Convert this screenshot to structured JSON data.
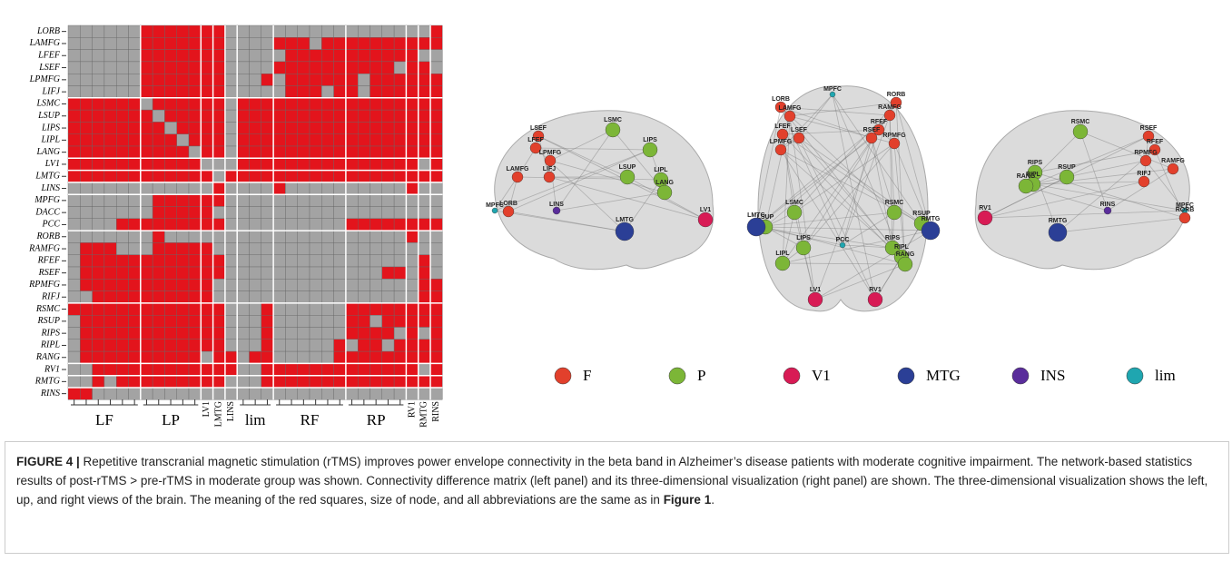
{
  "figure": {
    "matrix": {
      "row_labels": [
        "LORB",
        "LAMFG",
        "LFEF",
        "LSEF",
        "LPMFG",
        "LIFJ",
        "LSMC",
        "LSUP",
        "LIPS",
        "LIPL",
        "LANG",
        "LV1",
        "LMTG",
        "LINS",
        "MPFG",
        "DACC",
        "PCC",
        "RORB",
        "RAMFG",
        "RFEF",
        "RSEF",
        "RPMFG",
        "RIFJ",
        "RSMC",
        "RSUP",
        "RIPS",
        "RIPL",
        "RANG",
        "RV1",
        "RMTG",
        "RINS"
      ],
      "col_labels": [
        "LF",
        "LP",
        "LV1",
        "LMTG",
        "LINS",
        "lim",
        "RF",
        "RP",
        "RV1",
        "RMTG",
        "RINS"
      ],
      "on_color": "#e3141c",
      "off_color": "#a3a3a3",
      "cells": [
        [
          0,
          0,
          0,
          0,
          0,
          0,
          1,
          1,
          1,
          1,
          1,
          1,
          1,
          0,
          0,
          0,
          0,
          0,
          0,
          0,
          0,
          0,
          0,
          0,
          0,
          0,
          0,
          0,
          0,
          0,
          1
        ],
        [
          0,
          0,
          0,
          0,
          0,
          0,
          1,
          1,
          1,
          1,
          1,
          1,
          1,
          0,
          0,
          0,
          0,
          1,
          1,
          1,
          0,
          1,
          1,
          1,
          1,
          1,
          1,
          1,
          1,
          1,
          1
        ],
        [
          0,
          0,
          0,
          0,
          0,
          0,
          1,
          1,
          1,
          1,
          1,
          1,
          1,
          0,
          0,
          0,
          0,
          0,
          1,
          1,
          1,
          1,
          1,
          1,
          1,
          1,
          1,
          1,
          1,
          0,
          0
        ],
        [
          0,
          0,
          0,
          0,
          0,
          0,
          1,
          1,
          1,
          1,
          1,
          1,
          1,
          0,
          0,
          0,
          0,
          1,
          1,
          1,
          1,
          1,
          1,
          1,
          1,
          1,
          1,
          0,
          1,
          1,
          0
        ],
        [
          0,
          0,
          0,
          0,
          0,
          0,
          1,
          1,
          1,
          1,
          1,
          1,
          1,
          0,
          0,
          0,
          1,
          0,
          1,
          1,
          1,
          1,
          1,
          1,
          0,
          1,
          1,
          1,
          1,
          1,
          1
        ],
        [
          0,
          0,
          0,
          0,
          0,
          0,
          1,
          1,
          1,
          1,
          1,
          1,
          1,
          0,
          0,
          0,
          0,
          0,
          1,
          1,
          1,
          0,
          1,
          1,
          0,
          1,
          1,
          1,
          1,
          1,
          1
        ],
        [
          1,
          1,
          1,
          1,
          1,
          1,
          0,
          1,
          1,
          1,
          1,
          1,
          1,
          0,
          1,
          1,
          1,
          1,
          1,
          1,
          1,
          1,
          1,
          1,
          1,
          1,
          1,
          1,
          1,
          1,
          1
        ],
        [
          1,
          1,
          1,
          1,
          1,
          1,
          1,
          0,
          1,
          1,
          1,
          1,
          1,
          0,
          1,
          1,
          1,
          1,
          1,
          1,
          1,
          1,
          1,
          1,
          1,
          1,
          1,
          1,
          1,
          1,
          1
        ],
        [
          1,
          1,
          1,
          1,
          1,
          1,
          1,
          1,
          0,
          1,
          1,
          1,
          1,
          0,
          1,
          1,
          1,
          1,
          1,
          1,
          1,
          1,
          1,
          1,
          1,
          1,
          1,
          1,
          1,
          1,
          1
        ],
        [
          1,
          1,
          1,
          1,
          1,
          1,
          1,
          1,
          1,
          0,
          1,
          1,
          1,
          0,
          1,
          1,
          1,
          1,
          1,
          1,
          1,
          1,
          1,
          1,
          1,
          1,
          1,
          1,
          1,
          1,
          1
        ],
        [
          1,
          1,
          1,
          1,
          1,
          1,
          1,
          1,
          1,
          1,
          0,
          1,
          1,
          0,
          1,
          1,
          1,
          1,
          1,
          1,
          1,
          1,
          1,
          1,
          1,
          1,
          1,
          1,
          1,
          1,
          1
        ],
        [
          1,
          1,
          1,
          1,
          1,
          1,
          1,
          1,
          1,
          1,
          1,
          0,
          0,
          0,
          1,
          1,
          1,
          1,
          1,
          1,
          1,
          1,
          1,
          1,
          1,
          1,
          1,
          1,
          1,
          0,
          1
        ],
        [
          1,
          1,
          1,
          1,
          1,
          1,
          1,
          1,
          1,
          1,
          1,
          1,
          0,
          1,
          1,
          1,
          1,
          1,
          1,
          1,
          1,
          1,
          1,
          1,
          1,
          1,
          1,
          1,
          1,
          1,
          1
        ],
        [
          0,
          0,
          0,
          0,
          0,
          0,
          0,
          0,
          0,
          0,
          0,
          0,
          1,
          0,
          0,
          0,
          0,
          1,
          0,
          0,
          0,
          0,
          0,
          0,
          0,
          0,
          0,
          0,
          1,
          0,
          0
        ],
        [
          0,
          0,
          0,
          0,
          0,
          0,
          0,
          1,
          1,
          1,
          1,
          1,
          1,
          0,
          0,
          0,
          0,
          0,
          0,
          0,
          0,
          0,
          0,
          0,
          0,
          0,
          0,
          0,
          0,
          0,
          0
        ],
        [
          0,
          0,
          0,
          0,
          0,
          0,
          0,
          1,
          1,
          1,
          1,
          1,
          0,
          0,
          0,
          0,
          0,
          0,
          0,
          0,
          0,
          0,
          0,
          0,
          0,
          0,
          0,
          0,
          0,
          0,
          0
        ],
        [
          0,
          0,
          0,
          0,
          1,
          1,
          1,
          1,
          1,
          1,
          1,
          1,
          1,
          0,
          0,
          0,
          0,
          0,
          0,
          0,
          0,
          0,
          0,
          1,
          1,
          1,
          1,
          1,
          1,
          1,
          1
        ],
        [
          0,
          0,
          0,
          0,
          0,
          0,
          0,
          1,
          0,
          0,
          0,
          0,
          0,
          0,
          0,
          0,
          0,
          0,
          0,
          0,
          0,
          0,
          0,
          0,
          0,
          0,
          0,
          0,
          1,
          0,
          0
        ],
        [
          0,
          1,
          1,
          1,
          0,
          0,
          0,
          1,
          1,
          1,
          1,
          1,
          0,
          0,
          0,
          0,
          0,
          0,
          0,
          0,
          0,
          0,
          0,
          0,
          0,
          0,
          0,
          0,
          0,
          0,
          0
        ],
        [
          0,
          1,
          1,
          1,
          1,
          1,
          1,
          1,
          1,
          1,
          1,
          1,
          1,
          0,
          0,
          0,
          0,
          0,
          0,
          0,
          0,
          0,
          0,
          0,
          0,
          0,
          0,
          0,
          0,
          1,
          0
        ],
        [
          0,
          1,
          1,
          1,
          1,
          1,
          1,
          1,
          1,
          1,
          1,
          1,
          1,
          0,
          0,
          0,
          0,
          0,
          0,
          0,
          0,
          0,
          0,
          0,
          0,
          0,
          1,
          1,
          0,
          1,
          0
        ],
        [
          0,
          1,
          1,
          1,
          1,
          1,
          1,
          1,
          1,
          1,
          1,
          1,
          0,
          0,
          0,
          0,
          0,
          0,
          0,
          0,
          0,
          0,
          0,
          0,
          0,
          0,
          0,
          0,
          0,
          1,
          1
        ],
        [
          0,
          0,
          1,
          1,
          1,
          1,
          1,
          1,
          1,
          1,
          1,
          1,
          0,
          0,
          0,
          0,
          0,
          0,
          0,
          0,
          0,
          0,
          0,
          0,
          0,
          0,
          0,
          0,
          0,
          1,
          1
        ],
        [
          1,
          1,
          1,
          1,
          1,
          1,
          1,
          1,
          1,
          1,
          1,
          1,
          1,
          0,
          0,
          0,
          1,
          0,
          0,
          0,
          0,
          0,
          0,
          1,
          1,
          1,
          1,
          1,
          1,
          1,
          1
        ],
        [
          0,
          1,
          1,
          1,
          1,
          1,
          1,
          1,
          1,
          1,
          1,
          1,
          1,
          0,
          0,
          0,
          1,
          0,
          0,
          0,
          0,
          0,
          0,
          1,
          1,
          0,
          1,
          1,
          1,
          1,
          1
        ],
        [
          0,
          1,
          1,
          1,
          1,
          1,
          1,
          1,
          1,
          1,
          1,
          1,
          1,
          0,
          0,
          0,
          1,
          0,
          0,
          0,
          0,
          0,
          0,
          1,
          1,
          1,
          1,
          0,
          1,
          0,
          1
        ],
        [
          0,
          1,
          1,
          1,
          1,
          1,
          1,
          1,
          1,
          1,
          1,
          1,
          1,
          0,
          0,
          0,
          1,
          0,
          0,
          0,
          0,
          0,
          1,
          0,
          1,
          1,
          0,
          1,
          1,
          1,
          1
        ],
        [
          0,
          1,
          1,
          1,
          1,
          1,
          1,
          1,
          1,
          1,
          1,
          0,
          1,
          1,
          0,
          1,
          1,
          0,
          0,
          0,
          0,
          0,
          1,
          1,
          1,
          1,
          1,
          1,
          1,
          1,
          1
        ],
        [
          0,
          0,
          1,
          1,
          1,
          1,
          1,
          1,
          1,
          1,
          1,
          1,
          1,
          1,
          0,
          0,
          1,
          1,
          1,
          1,
          1,
          1,
          1,
          1,
          1,
          1,
          1,
          1,
          1,
          0,
          1
        ],
        [
          0,
          0,
          1,
          0,
          1,
          1,
          1,
          1,
          1,
          1,
          1,
          1,
          1,
          0,
          0,
          0,
          1,
          1,
          1,
          1,
          1,
          1,
          1,
          1,
          1,
          1,
          1,
          1,
          1,
          1,
          1
        ],
        [
          1,
          1,
          0,
          0,
          0,
          0,
          0,
          0,
          0,
          0,
          0,
          0,
          0,
          0,
          0,
          0,
          0,
          0,
          0,
          0,
          0,
          0,
          0,
          0,
          0,
          0,
          0,
          0,
          0,
          0,
          0
        ]
      ]
    },
    "legend": [
      {
        "name": "F",
        "color": "#e2402c"
      },
      {
        "name": "P",
        "color": "#7cb637"
      },
      {
        "name": "V1",
        "color": "#d81b55"
      },
      {
        "name": "MTG",
        "color": "#2b3f96"
      },
      {
        "name": "INS",
        "color": "#5a2d9b"
      },
      {
        "name": "lim",
        "color": "#1fa6b0"
      }
    ],
    "views": [
      {
        "nodes": [
          {
            "label": "LSEF",
            "group": "F"
          },
          {
            "label": "LFEF",
            "group": "F"
          },
          {
            "label": "LPMFG",
            "group": "F"
          },
          {
            "label": "LAMFG",
            "group": "F"
          },
          {
            "label": "LIFJ",
            "group": "F"
          },
          {
            "label": "LORB",
            "group": "F"
          },
          {
            "label": "LSMC",
            "group": "P"
          },
          {
            "label": "LIPS",
            "group": "P"
          },
          {
            "label": "LSUP",
            "group": "P"
          },
          {
            "label": "LIPL",
            "group": "P"
          },
          {
            "label": "LANG",
            "group": "P"
          },
          {
            "label": "LMTG",
            "group": "MTG"
          },
          {
            "label": "LV1",
            "group": "V1"
          },
          {
            "label": "MPFC",
            "group": "lim"
          },
          {
            "label": "LINS",
            "group": "INS"
          }
        ]
      },
      {
        "nodes": [
          {
            "label": "LORB",
            "group": "F"
          },
          {
            "label": "RORB",
            "group": "F"
          },
          {
            "label": "MPFC",
            "group": "lim"
          },
          {
            "label": "LAMFG",
            "group": "F"
          },
          {
            "label": "RAMFG",
            "group": "F"
          },
          {
            "label": "LFEF",
            "group": "F"
          },
          {
            "label": "LSEF",
            "group": "F"
          },
          {
            "label": "RFEF",
            "group": "F"
          },
          {
            "label": "RSEF",
            "group": "F"
          },
          {
            "label": "RPMFG",
            "group": "F"
          },
          {
            "label": "LPMFG",
            "group": "F"
          },
          {
            "label": "LSMC",
            "group": "P"
          },
          {
            "label": "RSMC",
            "group": "P"
          },
          {
            "label": "LSUP",
            "group": "P"
          },
          {
            "label": "RSUP",
            "group": "P"
          },
          {
            "label": "LIPS",
            "group": "P"
          },
          {
            "label": "RIPS",
            "group": "P"
          },
          {
            "label": "LIPL",
            "group": "P"
          },
          {
            "label": "RIPL",
            "group": "P"
          },
          {
            "label": "RANG",
            "group": "P"
          },
          {
            "label": "PCC",
            "group": "lim"
          },
          {
            "label": "LV1",
            "group": "V1"
          },
          {
            "label": "RV1",
            "group": "V1"
          },
          {
            "label": "RMTG",
            "group": "MTG"
          },
          {
            "label": "LMTG",
            "group": "MTG"
          }
        ]
      },
      {
        "nodes": [
          {
            "label": "RSMC",
            "group": "P"
          },
          {
            "label": "RSEF",
            "group": "F"
          },
          {
            "label": "RFEF",
            "group": "F"
          },
          {
            "label": "RPMFG",
            "group": "F"
          },
          {
            "label": "RAMFG",
            "group": "F"
          },
          {
            "label": "RIFJ",
            "group": "F"
          },
          {
            "label": "RIPS",
            "group": "P"
          },
          {
            "label": "RIPL",
            "group": "P"
          },
          {
            "label": "RANG",
            "group": "P"
          },
          {
            "label": "RSUP",
            "group": "P"
          },
          {
            "label": "RMTG",
            "group": "MTG"
          },
          {
            "label": "RV1",
            "group": "V1"
          },
          {
            "label": "RINS",
            "group": "INS"
          },
          {
            "label": "MPFC",
            "group": "lim"
          },
          {
            "label": "RORB",
            "group": "F"
          }
        ]
      }
    ],
    "caption": {
      "label": "FIGURE 4 |",
      "text": " Repetitive transcranial magnetic stimulation (rTMS) improves power envelope connectivity in the beta band in Alzheimer’s disease patients with moderate cognitive impairment. The network-based statistics results of post-rTMS > pre-rTMS in moderate group was shown. Connectivity difference matrix (left panel) and its three-dimensional visualization (right panel) are shown. The three-dimensional visualization shows the left, up, and right views of the brain. The meaning of the red squares, size of node, and all abbreviations are the same as in ",
      "ref": "Figure 1",
      "end": "."
    }
  }
}
